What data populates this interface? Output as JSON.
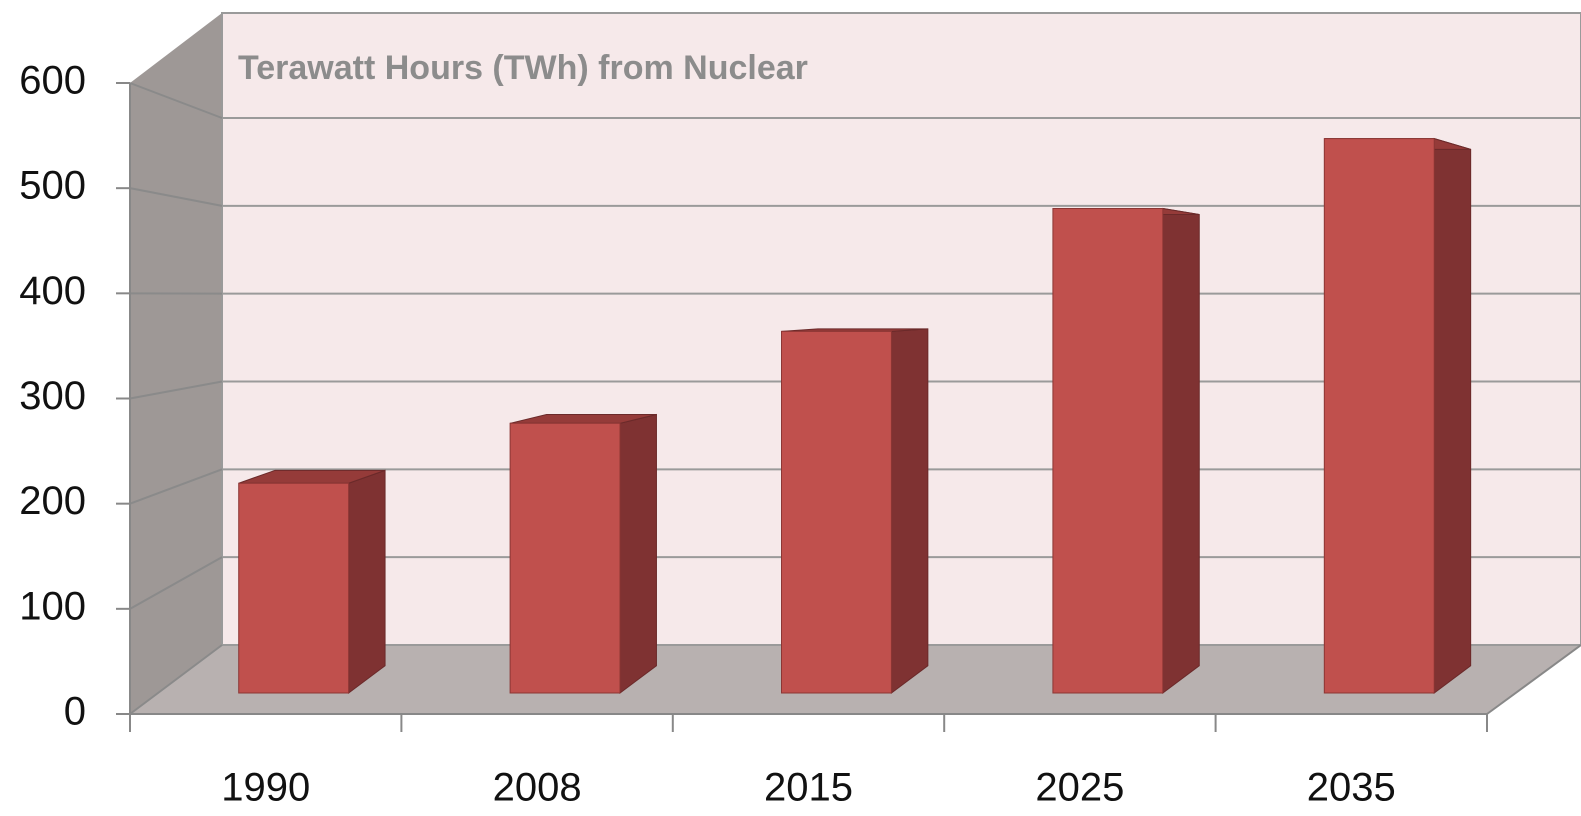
{
  "chart_data": {
    "type": "bar3d",
    "title": "Terawatt Hours (TWh) from Nuclear",
    "categories": [
      "1990",
      "2008",
      "2015",
      "2025",
      "2035"
    ],
    "values": [
      210,
      270,
      362,
      485,
      555
    ],
    "color": "#c0504d",
    "ylim": [
      0,
      600
    ],
    "yticks": [
      0,
      100,
      200,
      300,
      400,
      500,
      600
    ],
    "grid": true
  }
}
